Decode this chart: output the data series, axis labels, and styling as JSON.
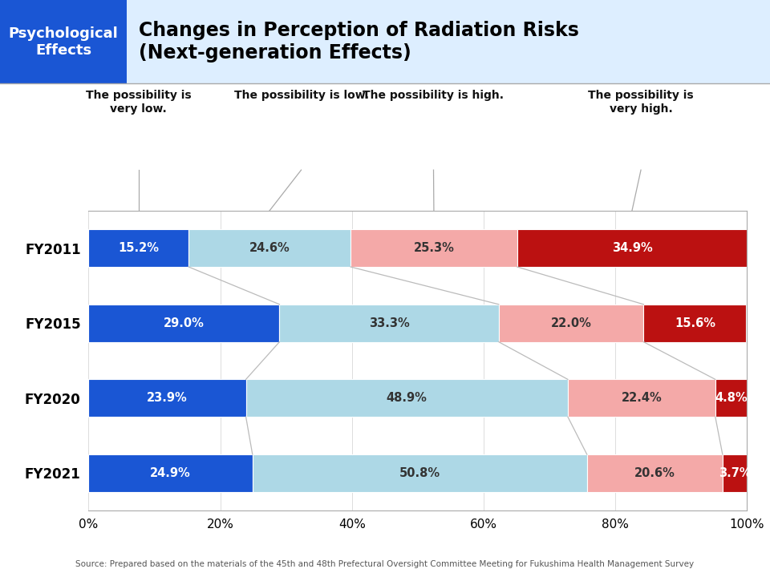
{
  "title": "Changes in Perception of Radiation Risks\n(Next-generation Effects)",
  "badge_text": "Psychological\nEffects",
  "badge_bg": "#1a56d4",
  "badge_text_color": "#ffffff",
  "title_bg": "#ddeeff",
  "title_color": "#000000",
  "years": [
    "FY2011",
    "FY2015",
    "FY2020",
    "FY2021"
  ],
  "categories": [
    "The possibility is\nvery low.",
    "The possibility is low.",
    "The possibility is high.",
    "The possibility is\nvery high."
  ],
  "values": [
    [
      15.2,
      24.6,
      25.3,
      34.9
    ],
    [
      29.0,
      33.3,
      22.0,
      15.6
    ],
    [
      23.9,
      48.9,
      22.4,
      4.8
    ],
    [
      24.9,
      50.8,
      20.6,
      3.7
    ]
  ],
  "colors": [
    "#1a56d4",
    "#add8e6",
    "#f4a9a8",
    "#bb1111"
  ],
  "source_text": "Source: Prepared based on the materials of the 45th and 48th Prefectural Oversight Committee Meeting for Fukushima Health Management Survey",
  "bar_height": 0.5,
  "background_color": "#ffffff"
}
